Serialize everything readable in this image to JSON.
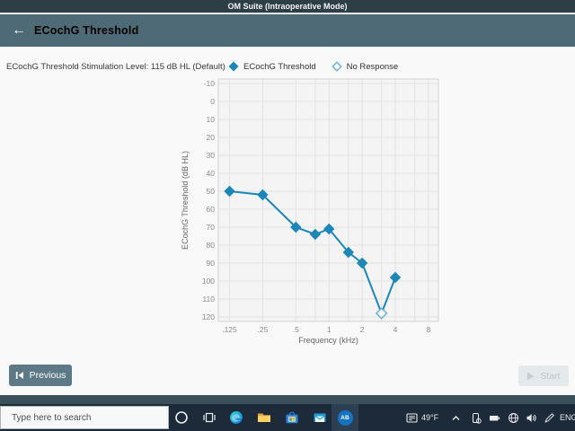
{
  "titlebar": {
    "title": "OM Suite (Intraoperative Mode)"
  },
  "header": {
    "title": "ECochG Threshold",
    "back_icon": "left-arrow"
  },
  "toolbar": {
    "stimulation_label": "ECochG Threshold Stimulation Level: 115 dB HL  (Default)",
    "legend": [
      {
        "label": "ECochG Threshold",
        "marker": "filled-diamond"
      },
      {
        "label": "No Response",
        "marker": "open-diamond"
      }
    ]
  },
  "chart_data": {
    "type": "line",
    "title": "",
    "xlabel": "Frequency (kHz)",
    "ylabel": "ECochG Threshold (dB HL)",
    "x_scale": "log2",
    "xlim": [
      0.125,
      8
    ],
    "ylim": [
      -10,
      120
    ],
    "y_inverted": true,
    "y_tick_step": 10,
    "grid": true,
    "legend_position": "top",
    "x_ticks": [
      0.125,
      0.25,
      0.5,
      1,
      2,
      4,
      8
    ],
    "x_tick_labels": [
      ".125",
      ".25",
      ".5",
      "1",
      "2",
      "4",
      "8"
    ],
    "x_gridlines": [
      0.125,
      0.25,
      0.5,
      0.75,
      1,
      1.5,
      2,
      3,
      4,
      6,
      8
    ],
    "series": [
      {
        "name": "ECochG Threshold",
        "marker": "diamond",
        "color": "#1c86b8",
        "points": [
          {
            "freq_khz": 0.125,
            "db_hl": 50,
            "response": true
          },
          {
            "freq_khz": 0.25,
            "db_hl": 52,
            "response": true
          },
          {
            "freq_khz": 0.5,
            "db_hl": 70,
            "response": true
          },
          {
            "freq_khz": 0.75,
            "db_hl": 74,
            "response": true
          },
          {
            "freq_khz": 1,
            "db_hl": 71,
            "response": true
          },
          {
            "freq_khz": 1.5,
            "db_hl": 84,
            "response": true
          },
          {
            "freq_khz": 2,
            "db_hl": 90,
            "response": true
          },
          {
            "freq_khz": 3,
            "db_hl": 118,
            "response": false
          },
          {
            "freq_khz": 4,
            "db_hl": 98,
            "response": true
          }
        ]
      }
    ]
  },
  "footer": {
    "previous": {
      "label": "Previous",
      "enabled": true
    },
    "start": {
      "label": "Start",
      "enabled": false
    }
  },
  "taskbar": {
    "search_placeholder": "Type here to search",
    "app_badge": "AB",
    "apps": [
      "cortana",
      "task-view",
      "edge",
      "file-explorer",
      "store",
      "mail",
      "om-suite"
    ],
    "tray": {
      "weather": "49°F",
      "language": "ENG"
    }
  },
  "colors": {
    "accent": "#1c86b8",
    "open_marker": "#5fb0d6",
    "titlebar": "#2d3e47",
    "header": "#4e6a76",
    "taskbar": "#1c2a39",
    "previous_button": "#5d7987",
    "start_disabled_bg": "#e4e9ec"
  }
}
